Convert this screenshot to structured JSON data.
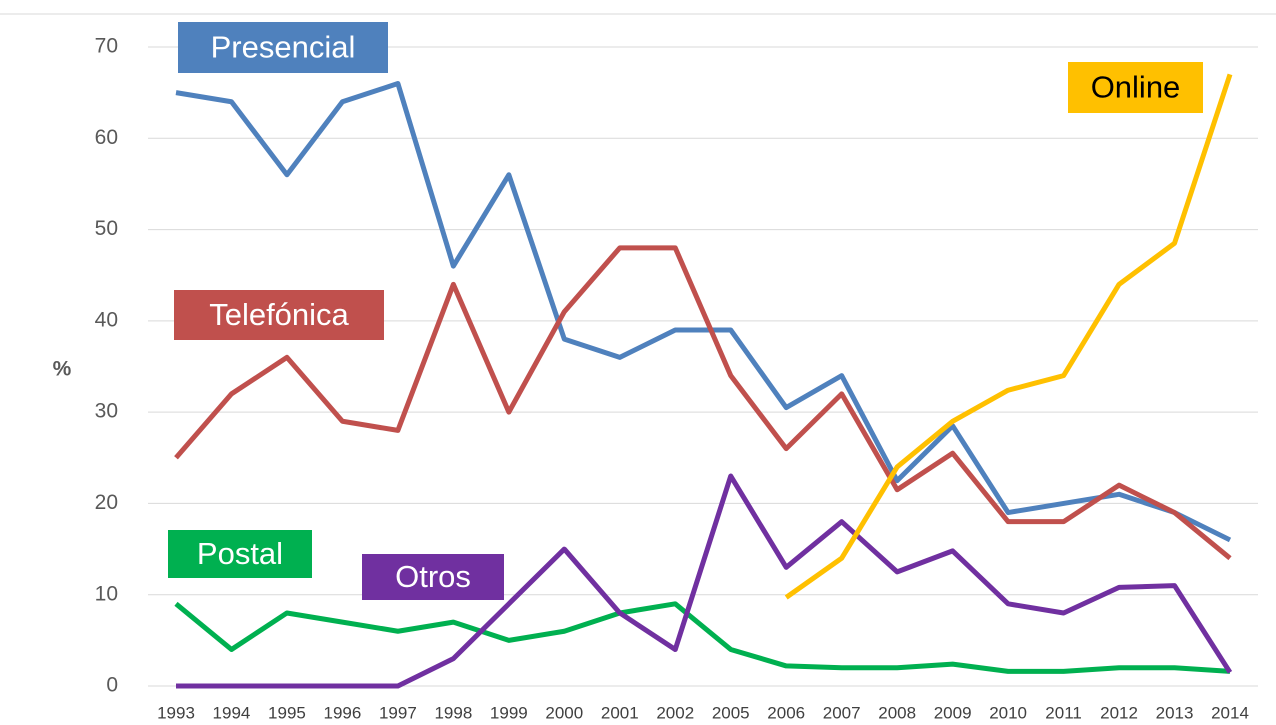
{
  "chart_data": {
    "type": "line",
    "y_label": "%",
    "categories": [
      "1993",
      "1994",
      "1995",
      "1996",
      "1997",
      "1998",
      "1999",
      "2000",
      "2001",
      "2002",
      "2005",
      "2006",
      "2007",
      "2008",
      "2009",
      "2010",
      "2011",
      "2012",
      "2013",
      "2014"
    ],
    "series": [
      {
        "name": "Presencial",
        "color": "#4f81bd",
        "values": [
          65,
          64,
          56,
          64,
          66,
          46,
          56,
          38,
          36,
          39,
          39,
          30.5,
          34,
          22.5,
          28.5,
          19,
          20,
          21,
          19,
          16
        ]
      },
      {
        "name": "Telefónica",
        "color": "#c0504d",
        "values": [
          25,
          32,
          36,
          29,
          28,
          44,
          30,
          41,
          48,
          48,
          34,
          26,
          32,
          21.5,
          25.5,
          18,
          18,
          22,
          19,
          14
        ]
      },
      {
        "name": "Postal",
        "color": "#00b050",
        "values": [
          9,
          4,
          8,
          7,
          6,
          7,
          5,
          6,
          8,
          9,
          4,
          2.2,
          2,
          2,
          2.4,
          1.6,
          1.6,
          2,
          2,
          1.6
        ]
      },
      {
        "name": "Otros",
        "color": "#7030a0",
        "values": [
          0,
          0,
          0,
          0,
          0,
          3,
          9,
          15,
          8,
          4,
          23,
          13,
          18,
          12.5,
          14.8,
          9,
          8,
          10.8,
          11,
          1.5
        ]
      },
      {
        "name": "Online",
        "color": "#ffc000",
        "values": [
          null,
          null,
          null,
          null,
          null,
          null,
          null,
          null,
          null,
          null,
          null,
          9.7,
          14,
          24,
          29,
          32.4,
          34,
          44,
          48.5,
          67
        ]
      }
    ],
    "ylim": [
      0,
      70
    ],
    "yticks": [
      0,
      10,
      20,
      30,
      40,
      50,
      60,
      70
    ],
    "grid": true
  }
}
